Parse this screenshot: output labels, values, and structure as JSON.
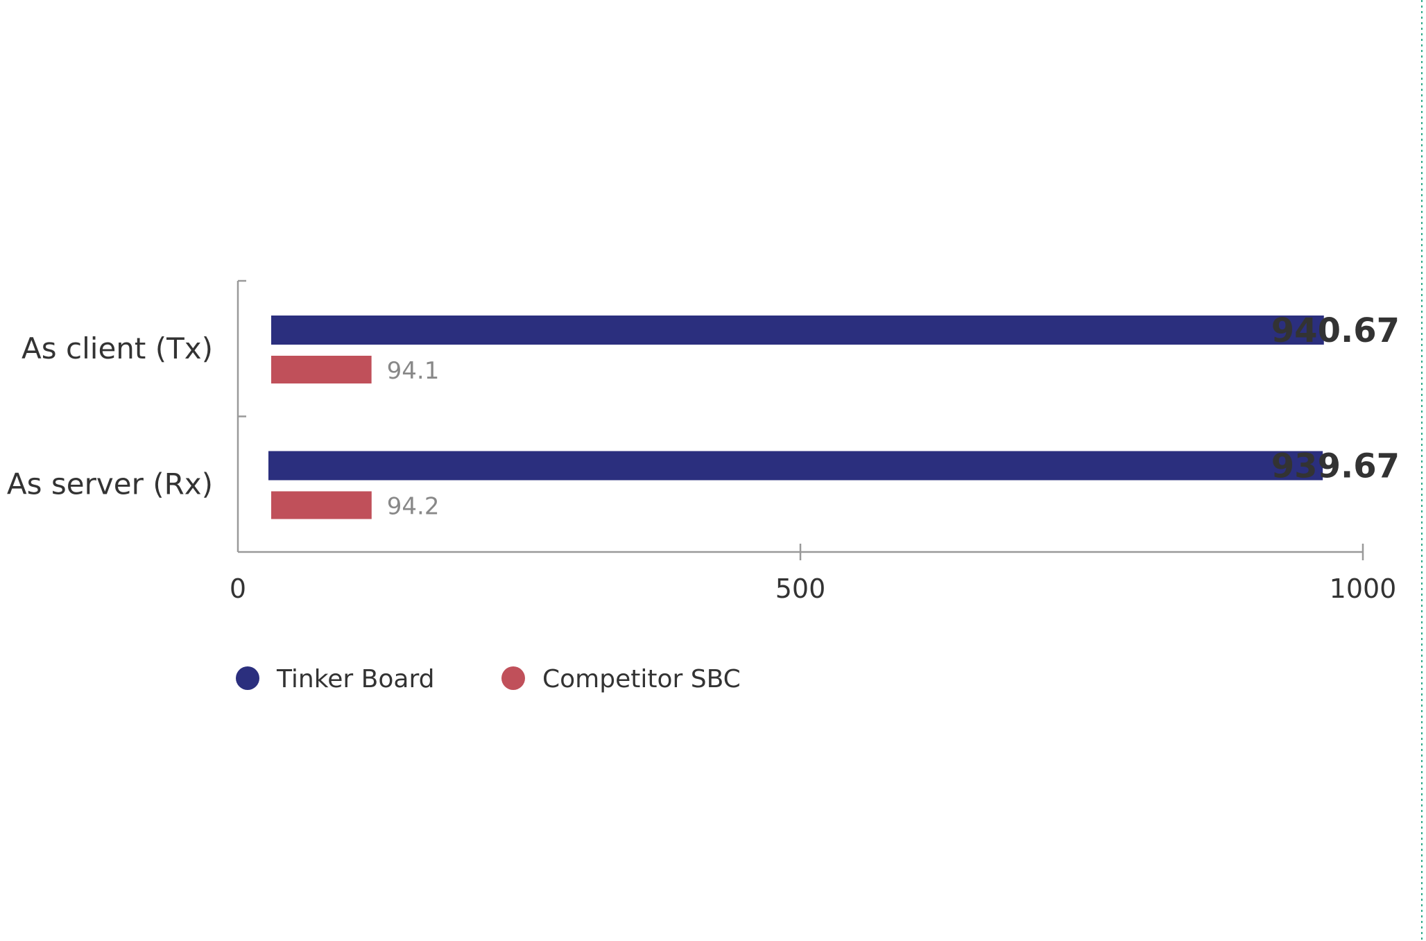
{
  "chart_data": {
    "type": "bar",
    "orientation": "horizontal",
    "categories": [
      "As client (Tx)",
      "As server (Rx)"
    ],
    "series": [
      {
        "name": "Tinker Board",
        "color": "#2B2F7E",
        "values": [
          940.67,
          939.67
        ],
        "labels": [
          "940.67",
          "939.67"
        ]
      },
      {
        "name": "Competitor SBC",
        "color": "#C0505A",
        "values": [
          94.1,
          94.2
        ],
        "labels": [
          "94.1",
          "94.2"
        ]
      }
    ],
    "xlim": [
      0,
      1000
    ],
    "xticks": [
      {
        "value": 0,
        "label": "0"
      },
      {
        "value": 500,
        "label": "500"
      },
      {
        "value": 1000,
        "label": "1000"
      }
    ],
    "title": "",
    "xlabel": "",
    "ylabel": "",
    "grid": false,
    "legend_position": "bottom-left"
  }
}
